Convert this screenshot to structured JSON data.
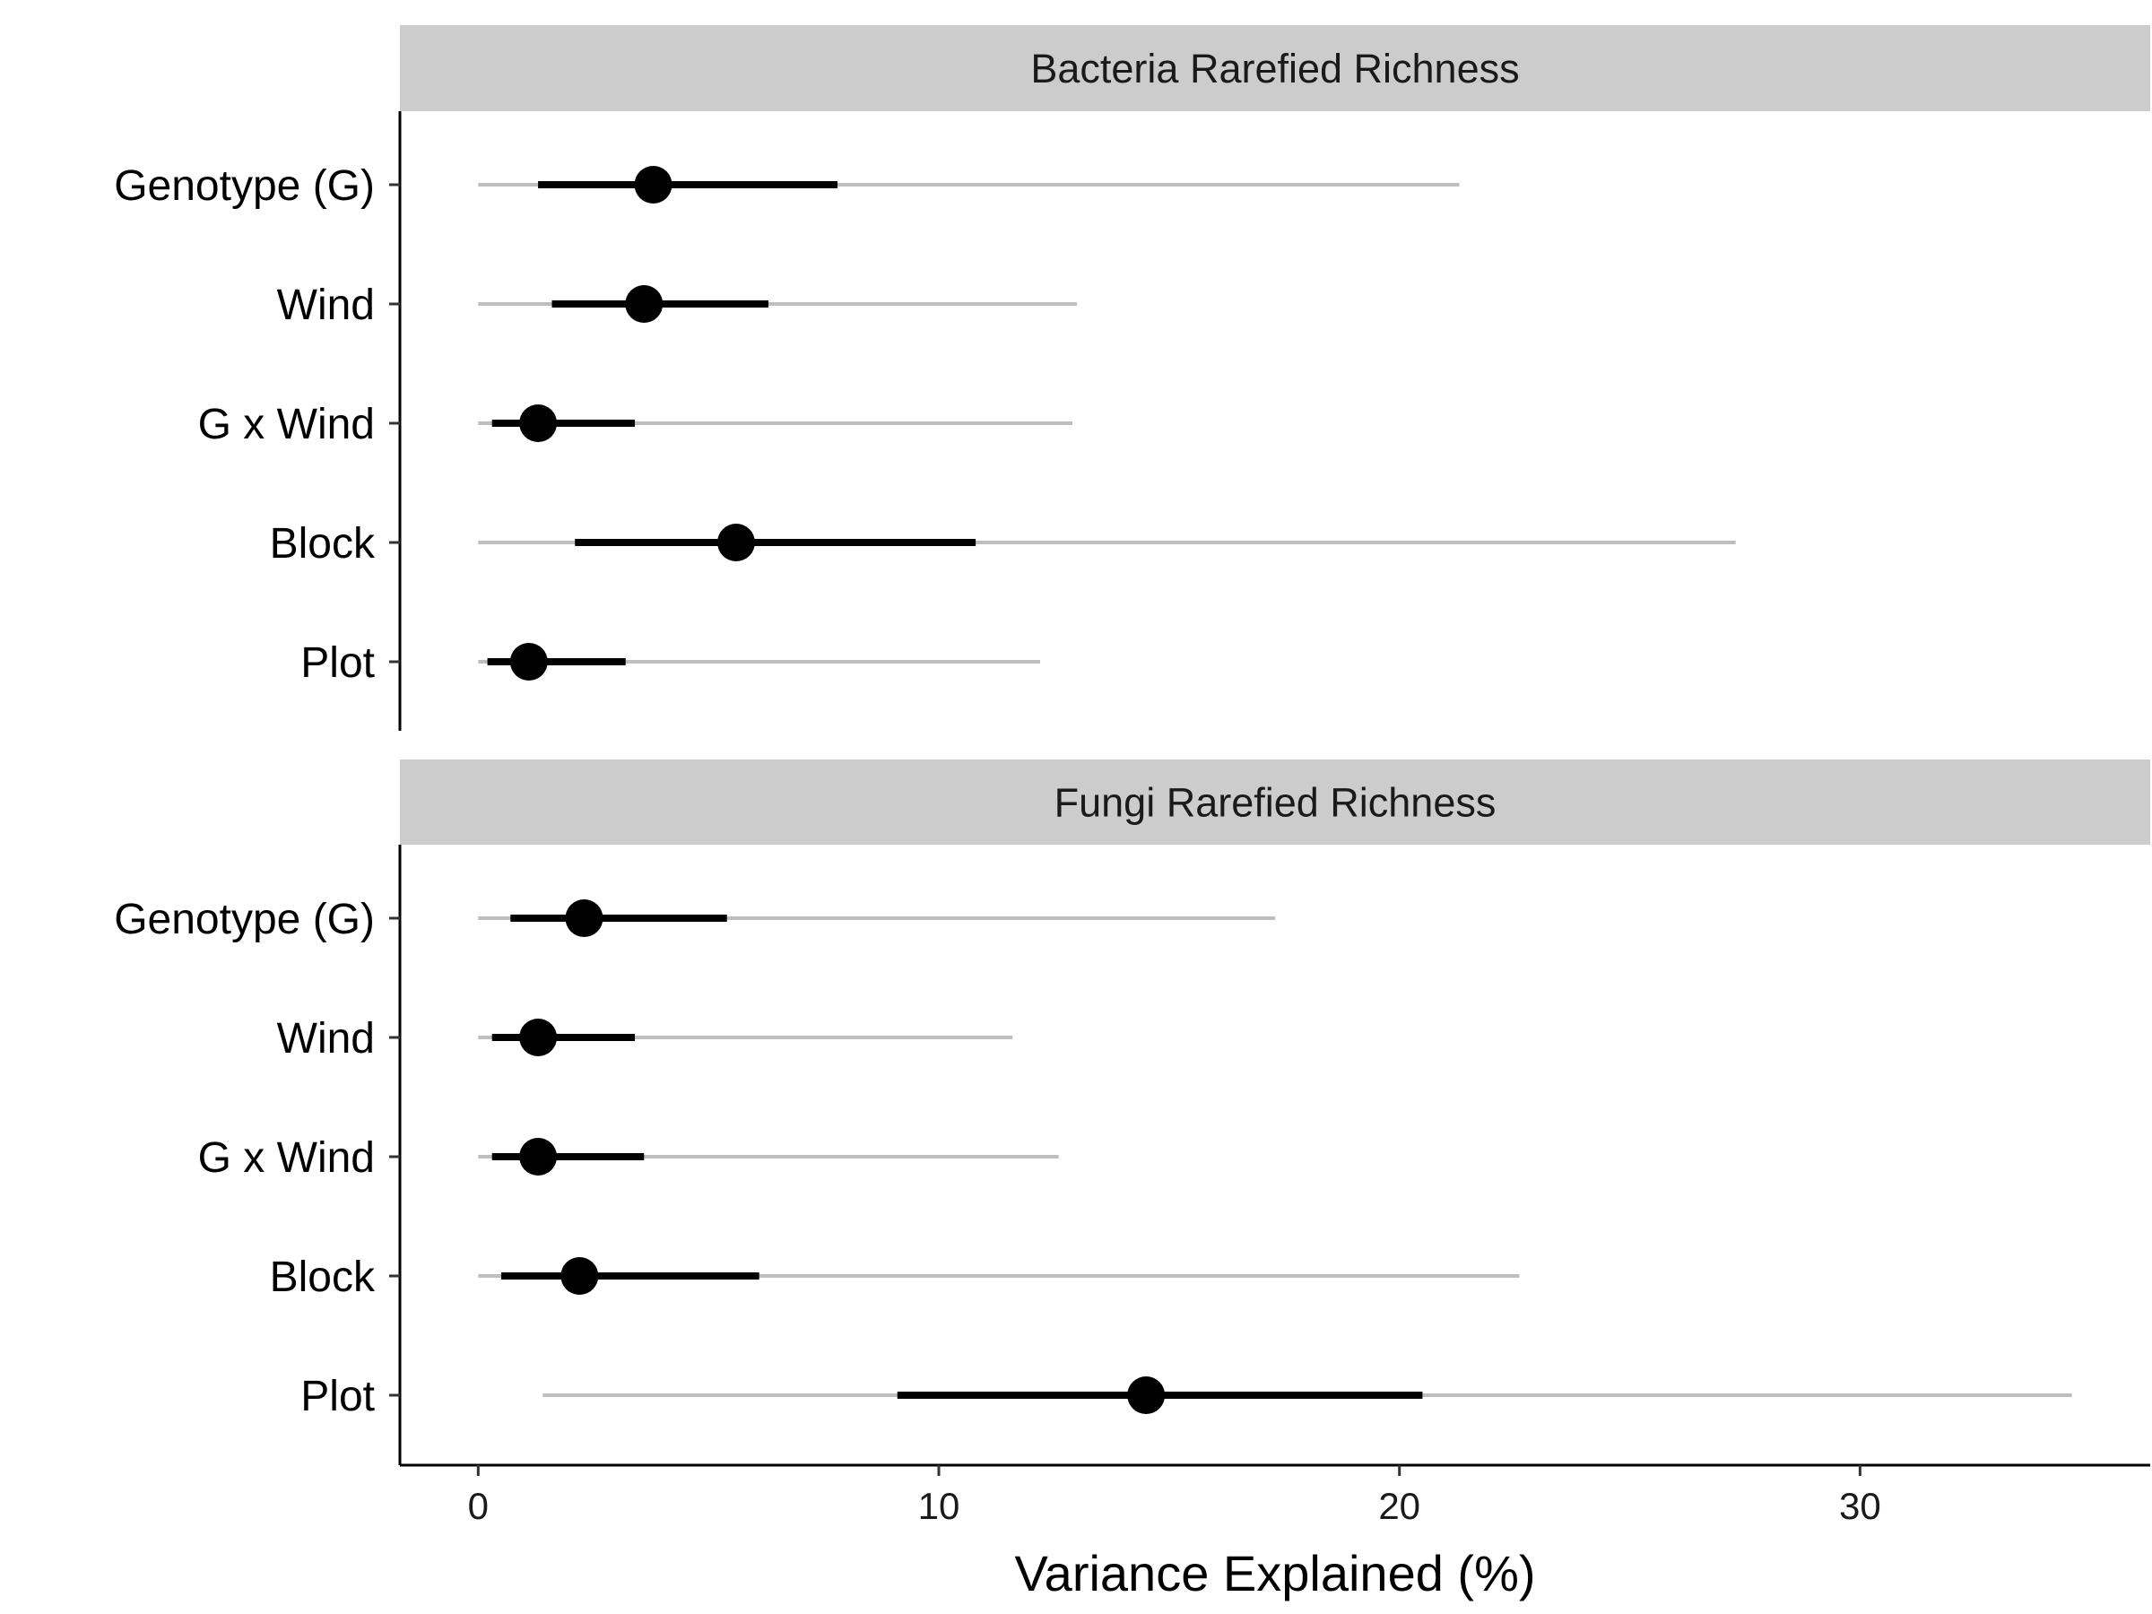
{
  "chart_data": {
    "type": "interval",
    "xlabel": "Variance Explained (%)",
    "xlim": [
      -1.7,
      36.3
    ],
    "xticks": [
      0,
      10,
      20,
      30
    ],
    "grid": false,
    "legend": "none",
    "colors": {
      "point": "#000000",
      "inner_interval": "#000000",
      "outer_interval": "#bebebe",
      "strip": "#cccccc"
    },
    "panels": [
      {
        "title": "Bacteria Rarefied Richness",
        "categories": [
          "Genotype (G)",
          "Wind",
          "G x Wind",
          "Block",
          "Plot"
        ],
        "estimate": [
          3.8,
          3.6,
          1.3,
          5.6,
          1.1
        ],
        "inner_low": [
          1.3,
          1.6,
          0.3,
          2.1,
          0.2
        ],
        "inner_high": [
          7.8,
          6.3,
          3.4,
          10.8,
          3.2
        ],
        "outer_low": [
          0.0,
          0.0,
          0.0,
          0.0,
          0.0
        ],
        "outer_high": [
          21.3,
          13.0,
          12.9,
          27.3,
          12.2
        ]
      },
      {
        "title": "Fungi Rarefied Richness",
        "categories": [
          "Genotype (G)",
          "Wind",
          "G x Wind",
          "Block",
          "Plot"
        ],
        "estimate": [
          2.3,
          1.3,
          1.3,
          2.2,
          14.5
        ],
        "inner_low": [
          0.7,
          0.3,
          0.3,
          0.5,
          9.1
        ],
        "inner_high": [
          5.4,
          3.4,
          3.6,
          6.1,
          20.5
        ],
        "outer_low": [
          0.0,
          0.0,
          0.0,
          0.0,
          1.4
        ],
        "outer_high": [
          17.3,
          11.6,
          12.6,
          22.6,
          34.6
        ]
      }
    ]
  }
}
